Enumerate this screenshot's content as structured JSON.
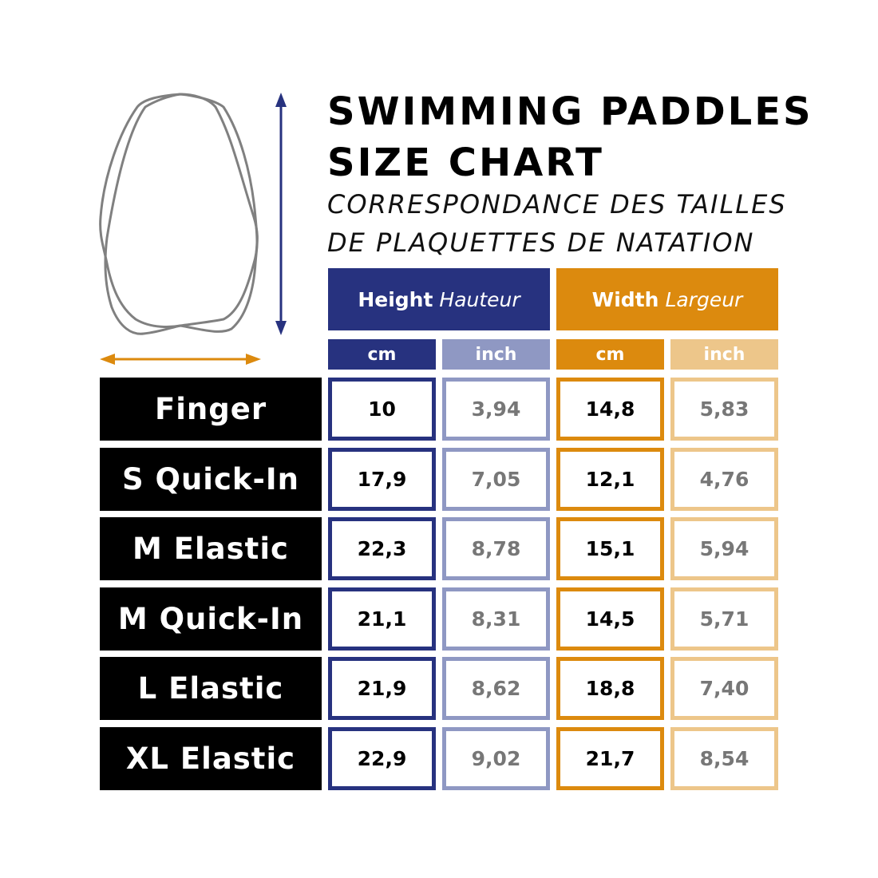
{
  "title_lines": [
    "SWIMMING PADDLES",
    "SIZE CHART"
  ],
  "subtitle_lines": [
    "CORRESPONDANCE DES TAILLES",
    "DE PLAQUETTES DE NATATION"
  ],
  "colors": {
    "height": "#27327f",
    "height_light": "#8f98c3",
    "width": "#dc8a0e",
    "width_light": "#edc68a",
    "inch_text": "#777777"
  },
  "headers": {
    "height": {
      "en": "Height",
      "fr": "Hauteur"
    },
    "width": {
      "en": "Width",
      "fr": "Largeur"
    },
    "units": [
      "cm",
      "inch",
      "cm",
      "inch"
    ]
  },
  "rows": [
    {
      "name": "Finger",
      "height_cm": "10",
      "height_inch": "3,94",
      "width_cm": "14,8",
      "width_inch": "5,83"
    },
    {
      "name": "S Quick-In",
      "height_cm": "17,9",
      "height_inch": "7,05",
      "width_cm": "12,1",
      "width_inch": "4,76"
    },
    {
      "name": "M Elastic",
      "height_cm": "22,3",
      "height_inch": "8,78",
      "width_cm": "15,1",
      "width_inch": "5,94"
    },
    {
      "name": "M Quick-In",
      "height_cm": "21,1",
      "height_inch": "8,31",
      "width_cm": "14,5",
      "width_inch": "5,71"
    },
    {
      "name": "L Elastic",
      "height_cm": "21,9",
      "height_inch": "8,62",
      "width_cm": "18,8",
      "width_inch": "7,40"
    },
    {
      "name": "XL Elastic",
      "height_cm": "22,9",
      "height_inch": "9,02",
      "width_cm": "21,7",
      "width_inch": "8,54"
    }
  ]
}
